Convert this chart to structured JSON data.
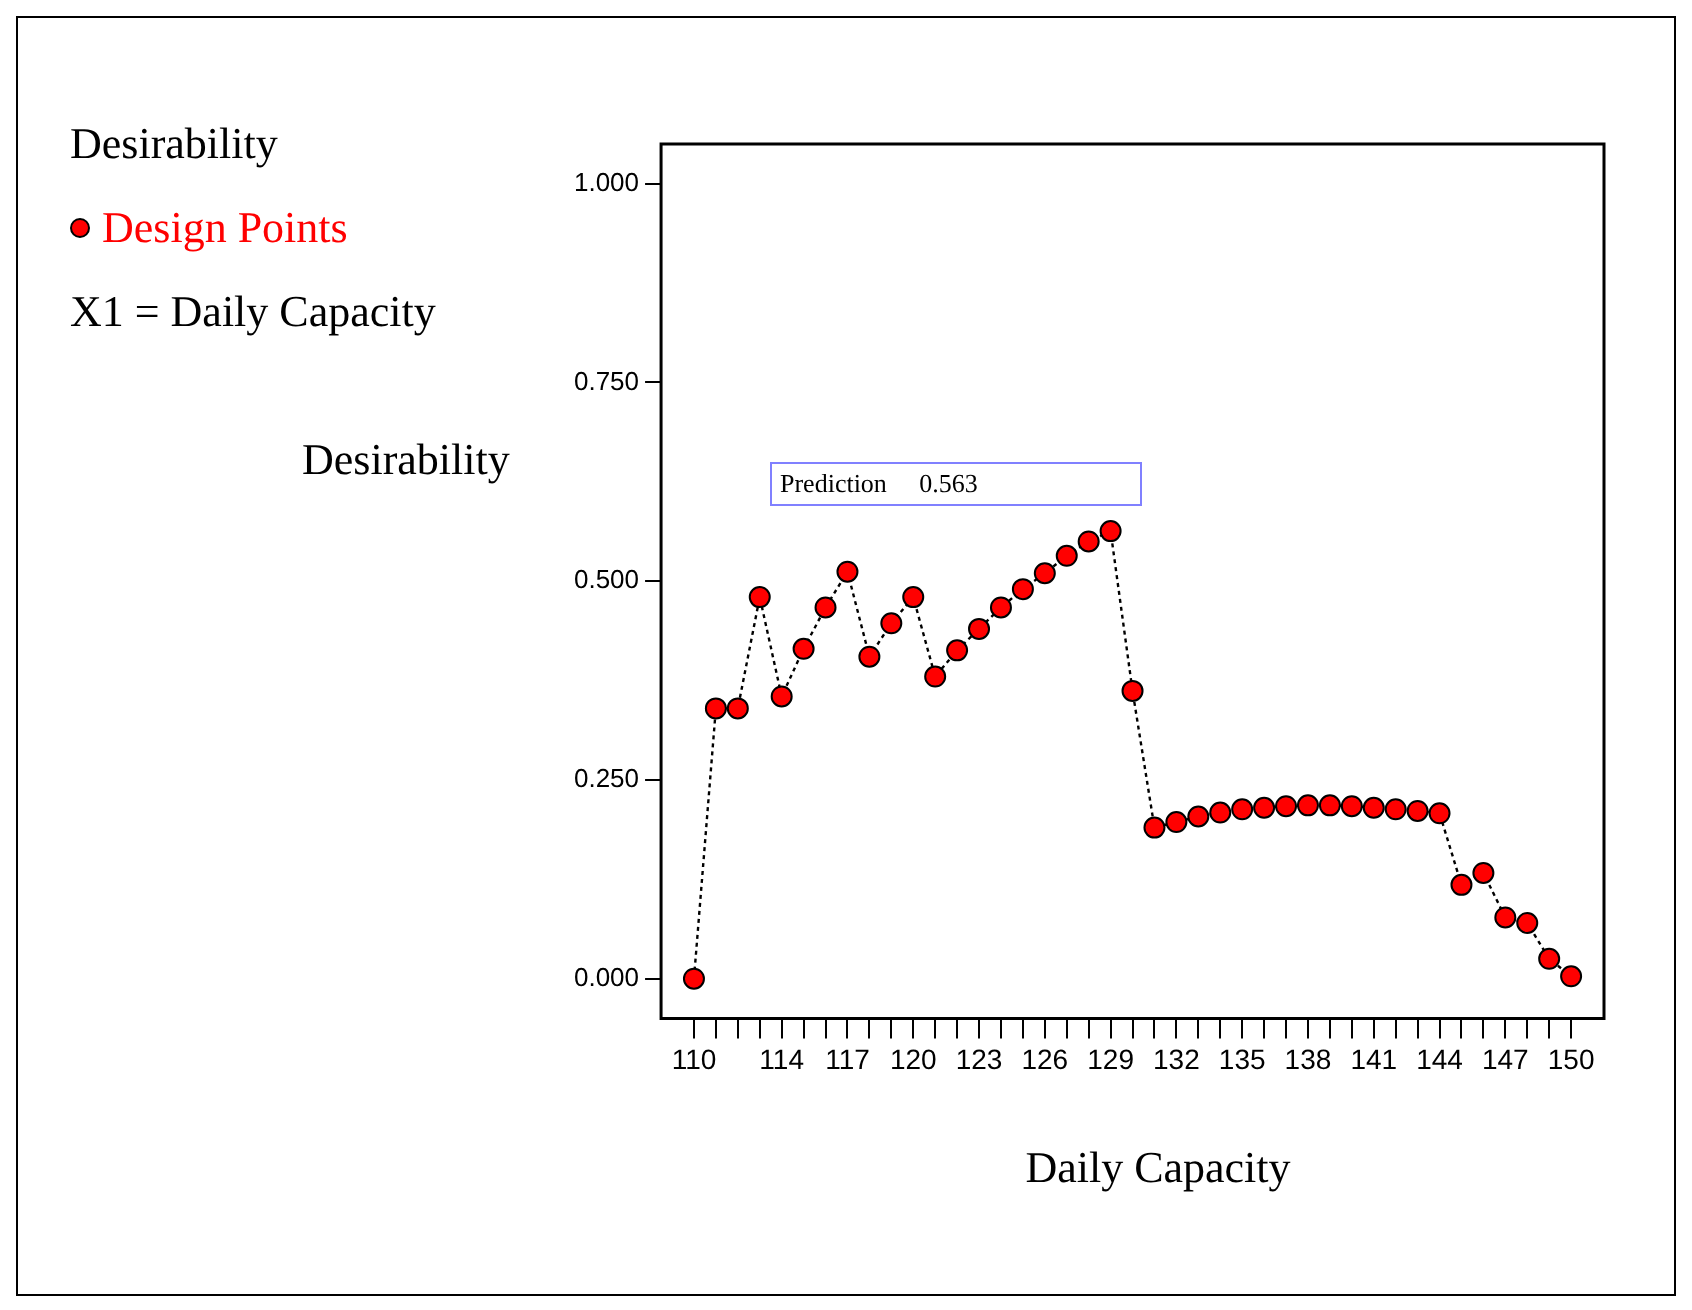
{
  "chart_data": {
    "type": "line",
    "legend_title": "Desirability",
    "ylabel": "Desirability",
    "xlabel": "Daily Capacity",
    "annotations": [
      "X1 = Daily Capacity",
      "Prediction     0.563"
    ],
    "x": [
      110,
      111,
      112,
      113,
      114,
      115,
      116,
      117,
      118,
      119,
      120,
      121,
      122,
      123,
      124,
      125,
      126,
      127,
      128,
      129,
      130,
      131,
      132,
      133,
      134,
      135,
      136,
      137,
      138,
      139,
      140,
      141,
      142,
      143,
      144,
      145,
      146,
      147,
      148,
      149,
      150
    ],
    "series": [
      {
        "name": "Design Points",
        "color": "#ff0000",
        "values": [
          0,
          0.34,
          0.34,
          0.48,
          0.355,
          0.415,
          0.467,
          0.512,
          0.405,
          0.447,
          0.48,
          0.38,
          0.413,
          0.44,
          0.467,
          0.49,
          0.51,
          0.532,
          0.55,
          0.563,
          0.362,
          0.19,
          0.197,
          0.204,
          0.209,
          0.213,
          0.215,
          0.217,
          0.218,
          0.218,
          0.217,
          0.215,
          0.213,
          0.211,
          0.208,
          0.118,
          0.133,
          0.077,
          0.07,
          0.025,
          0.003
        ]
      }
    ],
    "xlim": [
      108.5,
      151.5
    ],
    "xticks": [
      110,
      {
        "value": 111,
        "label": null
      },
      {
        "value": 112,
        "label": null
      },
      {
        "value": 113,
        "label": null
      },
      114,
      {
        "value": 115,
        "label": null
      },
      {
        "value": 116,
        "label": null
      },
      117,
      {
        "value": 118,
        "label": null
      },
      {
        "value": 119,
        "label": null
      },
      120,
      {
        "value": 121,
        "label": null
      },
      {
        "value": 122,
        "label": null
      },
      123,
      {
        "value": 124,
        "label": null
      },
      {
        "value": 125,
        "label": null
      },
      126,
      {
        "value": 127,
        "label": null
      },
      {
        "value": 128,
        "label": null
      },
      129,
      {
        "value": 130,
        "label": null
      },
      {
        "value": 131,
        "label": null
      },
      132,
      {
        "value": 133,
        "label": null
      },
      {
        "value": 134,
        "label": null
      },
      135,
      {
        "value": 136,
        "label": null
      },
      {
        "value": 137,
        "label": null
      },
      138,
      {
        "value": 139,
        "label": null
      },
      {
        "value": 140,
        "label": null
      },
      141,
      {
        "value": 142,
        "label": null
      },
      {
        "value": 143,
        "label": null
      },
      144,
      {
        "value": 145,
        "label": null
      },
      {
        "value": 146,
        "label": null
      },
      147,
      {
        "value": 148,
        "label": null
      },
      {
        "value": 149,
        "label": null
      },
      150
    ],
    "ylim": [
      -0.05,
      1.05
    ],
    "yticks": [
      {
        "value": 0,
        "label": "0.000"
      },
      {
        "value": 0.25,
        "label": "0.250"
      },
      {
        "value": 0.5,
        "label": "0.500"
      },
      {
        "value": 0.75,
        "label": "0.750"
      },
      {
        "value": 1,
        "label": "1.000"
      }
    ],
    "grid": false,
    "legend": "top left",
    "marker": "circle",
    "line_style": "dotted"
  }
}
